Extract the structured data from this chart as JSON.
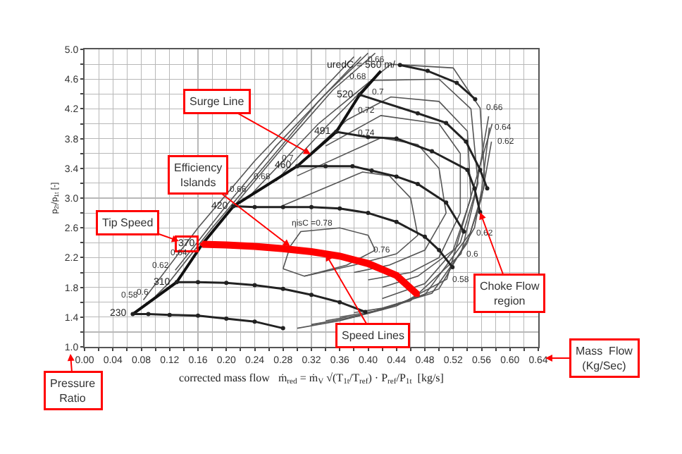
{
  "chart_data": {
    "type": "line",
    "xlabel": "corrected mass flow   ṁ$_{red}$ = ṁ$_{V}$ √(T$_{1t}$/T$_{ref}$) · P$_{ref}$/P$_{1t}$  [kg/s]",
    "ylabel": "p$_{2t}$/p$_{1t}$ [-]",
    "xlim": [
      0,
      0.64
    ],
    "xticks": [
      {
        "value": 0,
        "label": "0.00"
      },
      {
        "value": 0.02,
        "label": null
      },
      {
        "value": 0.04,
        "label": "0.04"
      },
      {
        "value": 0.06,
        "label": null
      },
      {
        "value": 0.08,
        "label": "0.08"
      },
      {
        "value": 0.1,
        "label": null
      },
      {
        "value": 0.12,
        "label": "0.12"
      },
      {
        "value": 0.14,
        "label": null
      },
      {
        "value": 0.16,
        "label": "0.16"
      },
      {
        "value": 0.18,
        "label": null
      },
      {
        "value": 0.2,
        "label": "0.20"
      },
      {
        "value": 0.22,
        "label": null
      },
      {
        "value": 0.24,
        "label": "0.24"
      },
      {
        "value": 0.26,
        "label": null
      },
      {
        "value": 0.28,
        "label": "0.28"
      },
      {
        "value": 0.3,
        "label": null
      },
      {
        "value": 0.32,
        "label": "0.32"
      },
      {
        "value": 0.34,
        "label": null
      },
      {
        "value": 0.36,
        "label": "0.36"
      },
      {
        "value": 0.38,
        "label": null
      },
      {
        "value": 0.4,
        "label": "0.40"
      },
      {
        "value": 0.42,
        "label": null
      },
      {
        "value": 0.44,
        "label": "0.44"
      },
      {
        "value": 0.46,
        "label": null
      },
      {
        "value": 0.48,
        "label": "0.48"
      },
      {
        "value": 0.5,
        "label": null
      },
      {
        "value": 0.52,
        "label": "0.52"
      },
      {
        "value": 0.54,
        "label": null
      },
      {
        "value": 0.56,
        "label": "0.56"
      },
      {
        "value": 0.58,
        "label": null
      },
      {
        "value": 0.6,
        "label": "0.60"
      },
      {
        "value": 0.62,
        "label": null
      },
      {
        "value": 0.64,
        "label": "0.64"
      }
    ],
    "ylim": [
      1,
      5
    ],
    "yticks": [
      {
        "value": 1,
        "label": "1.0"
      },
      {
        "value": 1.2,
        "label": null
      },
      {
        "value": 1.4,
        "label": "1.4"
      },
      {
        "value": 1.6,
        "label": null
      },
      {
        "value": 1.8,
        "label": "1.8"
      },
      {
        "value": 2,
        "label": null
      },
      {
        "value": 2.2,
        "label": "2.2"
      },
      {
        "value": 2.4,
        "label": null
      },
      {
        "value": 2.6,
        "label": "2.6"
      },
      {
        "value": 2.8,
        "label": null
      },
      {
        "value": 3,
        "label": "3.0"
      },
      {
        "value": 3.2,
        "label": null
      },
      {
        "value": 3.4,
        "label": "3.4"
      },
      {
        "value": 3.6,
        "label": null
      },
      {
        "value": 3.8,
        "label": "3.8"
      },
      {
        "value": 4,
        "label": null
      },
      {
        "value": 4.2,
        "label": "4.2"
      },
      {
        "value": 4.4,
        "label": null
      },
      {
        "value": 4.6,
        "label": "4.6"
      },
      {
        "value": 4.8,
        "label": null
      },
      {
        "value": 5,
        "label": "5.0"
      }
    ],
    "grid": true,
    "series": [
      {
        "marker": "none",
        "color": "#555555",
        "x": [
          0.083,
          0.16,
          0.24,
          0.32,
          0.38
        ],
        "values": [
          1.63,
          2.6,
          3.5,
          4.3,
          4.9
        ]
      },
      {
        "marker": "none",
        "color": "#555555",
        "x": [
          0.575,
          0.511,
          0.44,
          0.36,
          0.3
        ],
        "values": [
          4.0,
          1.91,
          1.55,
          1.35,
          1.25
        ]
      },
      {
        "marker": "none",
        "color": "#555555",
        "x": [
          0.1,
          0.116,
          0.18,
          0.26,
          0.33,
          0.39
        ],
        "values": [
          1.68,
          1.83,
          2.6,
          3.5,
          4.3,
          4.9
        ]
      },
      {
        "marker": "none",
        "color": "#555555",
        "x": [
          0.57,
          0.55,
          0.531,
          0.46,
          0.38,
          0.32
        ],
        "values": [
          4.1,
          3.0,
          2.25,
          1.62,
          1.4,
          1.3
        ]
      },
      {
        "marker": "none",
        "color": "#555555",
        "x": [
          0.128,
          0.2,
          0.27,
          0.34,
          0.4
        ],
        "values": [
          2.03,
          2.9,
          3.7,
          4.4,
          4.95
        ]
      },
      {
        "marker": "none",
        "color": "#555555",
        "x": [
          0.574,
          0.56,
          0.544,
          0.48,
          0.4,
          0.34
        ],
        "values": [
          3.76,
          3.0,
          2.53,
          1.7,
          1.45,
          1.35
        ]
      },
      {
        "marker": "none",
        "color": "#555555",
        "x": [
          0.153,
          0.22,
          0.29,
          0.35,
          0.41
        ],
        "values": [
          2.21,
          3.0,
          3.8,
          4.45,
          4.95
        ]
      },
      {
        "marker": "none",
        "color": "#555555",
        "x": [
          0.571,
          0.56,
          0.55,
          0.5,
          0.42,
          0.36
        ],
        "values": [
          3.95,
          3.1,
          2.6,
          1.78,
          1.5,
          1.4
        ]
      },
      {
        "marker": "none",
        "color": "#555555",
        "x": [
          0.236,
          0.33,
          0.432,
          0.52,
          0.558,
          0.565,
          0.54,
          0.49,
          0.42,
          0.38
        ],
        "values": [
          3.06,
          4.0,
          4.8,
          4.75,
          4.21,
          3.2,
          2.4,
          1.72,
          1.52,
          1.46
        ]
      },
      {
        "marker": "none",
        "color": "#555555",
        "x": [
          0.27,
          0.34,
          0.405,
          0.5,
          0.545,
          0.555,
          0.53,
          0.48,
          0.42
        ],
        "values": [
          3.23,
          3.95,
          4.58,
          4.6,
          4.2,
          3.2,
          2.4,
          1.85,
          1.65
        ]
      },
      {
        "marker": "none",
        "color": "#555555",
        "x": [
          0.305,
          0.37,
          0.432,
          0.5,
          0.54,
          0.545,
          0.52,
          0.47,
          0.42
        ],
        "values": [
          3.48,
          4.05,
          4.36,
          4.3,
          3.9,
          3.0,
          2.3,
          1.95,
          1.8
        ]
      },
      {
        "marker": "none",
        "color": "#555555",
        "x": [
          0.34,
          0.418,
          0.5,
          0.53,
          0.53,
          0.5,
          0.46,
          0.4
        ],
        "values": [
          3.7,
          4.11,
          4.0,
          3.6,
          2.8,
          2.2,
          2.0,
          1.9
        ]
      },
      {
        "marker": "none",
        "color": "#555555",
        "x": [
          0.3,
          0.418,
          0.47,
          0.5,
          0.51,
          0.48,
          0.43,
          0.38
        ],
        "values": [
          3.3,
          3.81,
          3.72,
          3.4,
          2.8,
          2.3,
          2.1,
          2.0
        ]
      },
      {
        "marker": "none",
        "color": "#555555",
        "x": [
          0.28,
          0.392,
          0.43,
          0.46,
          0.47,
          0.44,
          0.38,
          0.31
        ],
        "values": [
          2.9,
          3.35,
          3.3,
          3.0,
          2.5,
          2.25,
          2.1,
          1.95
        ]
      },
      {
        "marker": "none",
        "color": "#555555",
        "x": [
          0.28,
          0.29,
          0.305,
          0.36,
          0.4,
          0.41
        ],
        "values": [
          2.05,
          2.35,
          2.55,
          2.6,
          2.5,
          2.3
        ]
      },
      {
        "marker": "none",
        "color": "#555555",
        "x": [
          0.41,
          0.37,
          0.31,
          0.28
        ],
        "values": [
          2.3,
          2.1,
          1.95,
          2.05
        ]
      },
      {
        "marker": "none",
        "color": "#111111",
        "x": [
          0.068,
          0.13,
          0.166,
          0.21,
          0.3,
          0.355,
          0.388,
          0.418
        ],
        "values": [
          1.44,
          1.87,
          2.38,
          2.89,
          3.43,
          3.89,
          4.39,
          4.71
        ]
      },
      {
        "marker": "circle",
        "name": "230",
        "color": "#222222",
        "x": [
          0.068,
          0.09,
          0.12,
          0.16,
          0.2,
          0.24,
          0.28
        ],
        "values": [
          1.44,
          1.44,
          1.43,
          1.42,
          1.38,
          1.34,
          1.25
        ]
      },
      {
        "marker": "circle",
        "name": "310",
        "color": "#222222",
        "x": [
          0.13,
          0.16,
          0.2,
          0.24,
          0.28,
          0.32,
          0.36,
          0.396
        ],
        "values": [
          1.87,
          1.87,
          1.86,
          1.83,
          1.78,
          1.7,
          1.6,
          1.47
        ]
      },
      {
        "marker": "circle",
        "name": "370",
        "color": "#ff0000",
        "x": [
          0.166,
          0.2,
          0.24,
          0.28,
          0.32,
          0.36,
          0.4,
          0.44,
          0.47
        ],
        "values": [
          2.38,
          2.37,
          2.35,
          2.32,
          2.28,
          2.22,
          2.12,
          1.96,
          1.7
        ]
      },
      {
        "marker": "circle",
        "name": "420",
        "color": "#222222",
        "x": [
          0.21,
          0.24,
          0.28,
          0.32,
          0.36,
          0.4,
          0.44,
          0.48,
          0.5,
          0.519
        ],
        "values": [
          2.89,
          2.88,
          2.88,
          2.88,
          2.86,
          2.8,
          2.68,
          2.48,
          2.3,
          2.07
        ]
      },
      {
        "marker": "circle",
        "name": "460",
        "color": "#222222",
        "x": [
          0.3,
          0.34,
          0.378,
          0.405,
          0.44,
          0.47,
          0.51,
          0.535
        ],
        "values": [
          3.43,
          3.43,
          3.43,
          3.37,
          3.29,
          3.19,
          2.94,
          2.55
        ]
      },
      {
        "marker": "circle",
        "name": "491",
        "color": "#222222",
        "x": [
          0.355,
          0.4,
          0.44,
          0.49,
          0.54,
          0.55,
          0.558
        ],
        "values": [
          3.89,
          3.82,
          3.8,
          3.63,
          3.38,
          3.13,
          2.81
        ]
      },
      {
        "marker": "circle",
        "name": "520",
        "color": "#222222",
        "x": [
          0.388,
          0.47,
          0.51,
          0.538,
          0.558,
          0.568
        ],
        "values": [
          4.39,
          4.14,
          4.01,
          3.76,
          3.38,
          3.13
        ]
      },
      {
        "marker": "circle",
        "name": "uredC = 560 m/",
        "color": "#222222",
        "x": [
          0.445,
          0.484,
          0.525,
          0.551
        ],
        "values": [
          4.79,
          4.71,
          4.55,
          4.33
        ]
      }
    ],
    "annotations": [
      {
        "text": "0.58",
        "x": 0.083,
        "y": 1.63
      },
      {
        "text": "0.58",
        "x": 0.511,
        "y": 1.91
      },
      {
        "text": "0.6",
        "x": 0.1,
        "y": 1.68
      },
      {
        "text": "0.6",
        "x": 0.531,
        "y": 2.25
      },
      {
        "text": "0.62",
        "x": 0.128,
        "y": 2.03
      },
      {
        "text": "0.62",
        "x": 0.574,
        "y": 3.76
      },
      {
        "text": "0.62",
        "x": 0.544,
        "y": 2.53
      },
      {
        "text": "0.64",
        "x": 0.153,
        "y": 2.21
      },
      {
        "text": "0.64",
        "x": 0.571,
        "y": 3.95
      },
      {
        "text": "0.66",
        "x": 0.236,
        "y": 3.06
      },
      {
        "text": "0.66",
        "x": 0.432,
        "y": 4.8
      },
      {
        "text": "0.66",
        "x": 0.558,
        "y": 4.21
      },
      {
        "text": "0.68",
        "x": 0.27,
        "y": 3.23
      },
      {
        "text": "0.68",
        "x": 0.405,
        "y": 4.58
      },
      {
        "text": "0.7",
        "x": 0.305,
        "y": 3.48
      },
      {
        "text": "0.7",
        "x": 0.432,
        "y": 4.36
      },
      {
        "text": "0.72",
        "x": 0.418,
        "y": 4.11
      },
      {
        "text": "0.74",
        "x": 0.418,
        "y": 3.81
      },
      {
        "text": "0.76",
        "x": 0.44,
        "y": 2.25
      },
      {
        "text": "ηisC =0.78",
        "x": 0.36,
        "y": 2.6
      },
      {
        "text": "Surge Line",
        "x": 0.319,
        "y": 3.59
      },
      {
        "text": "Efficiency\nIslands",
        "x": 0.29,
        "y": 2.35
      },
      "Tip Speed",
      {
        "text": "Speed Lines",
        "x": 0.34,
        "y": 2.25
      },
      {
        "text": "Choke Flow\nregion",
        "x": 0.558,
        "y": 2.81
      },
      "Mass  Flow\n(Kg/Sec)",
      "Pressure\nRatio"
    ]
  }
}
